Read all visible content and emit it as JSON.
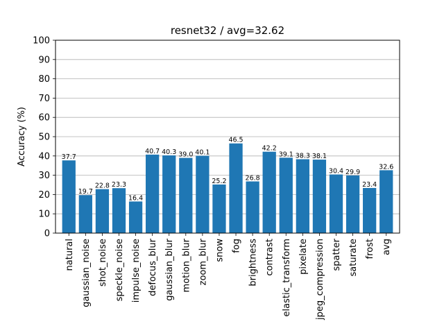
{
  "chart_data": {
    "type": "bar",
    "title": "resnet32 / avg=32.62",
    "xlabel": "",
    "ylabel": "Accuracy (%)",
    "ylim": [
      0,
      100
    ],
    "yticks": [
      0,
      10,
      20,
      30,
      40,
      50,
      60,
      70,
      80,
      90,
      100
    ],
    "grid": "y",
    "bar_color": "#1f77b4",
    "categories": [
      "natural",
      "gaussian_noise",
      "shot_noise",
      "speckle_noise",
      "impulse_noise",
      "defocus_blur",
      "gaussian_blur",
      "motion_blur",
      "zoom_blur",
      "snow",
      "fog",
      "brightness",
      "contrast",
      "elastic_transform",
      "pixelate",
      "jpeg_compression",
      "spatter",
      "saturate",
      "frost",
      "avg"
    ],
    "values": [
      37.7,
      19.7,
      22.8,
      23.3,
      16.4,
      40.7,
      40.3,
      39.0,
      40.1,
      25.2,
      46.5,
      26.8,
      42.2,
      39.1,
      38.3,
      38.1,
      30.4,
      29.9,
      23.4,
      32.6
    ],
    "value_labels": [
      "37.7",
      "19.7",
      "22.8",
      "23.3",
      "16.4",
      "40.7",
      "40.3",
      "39.0",
      "40.1",
      "25.2",
      "46.5",
      "26.8",
      "42.2",
      "39.1",
      "38.3",
      "38.1",
      "30.4",
      "29.9",
      "23.4",
      "32.6"
    ]
  }
}
